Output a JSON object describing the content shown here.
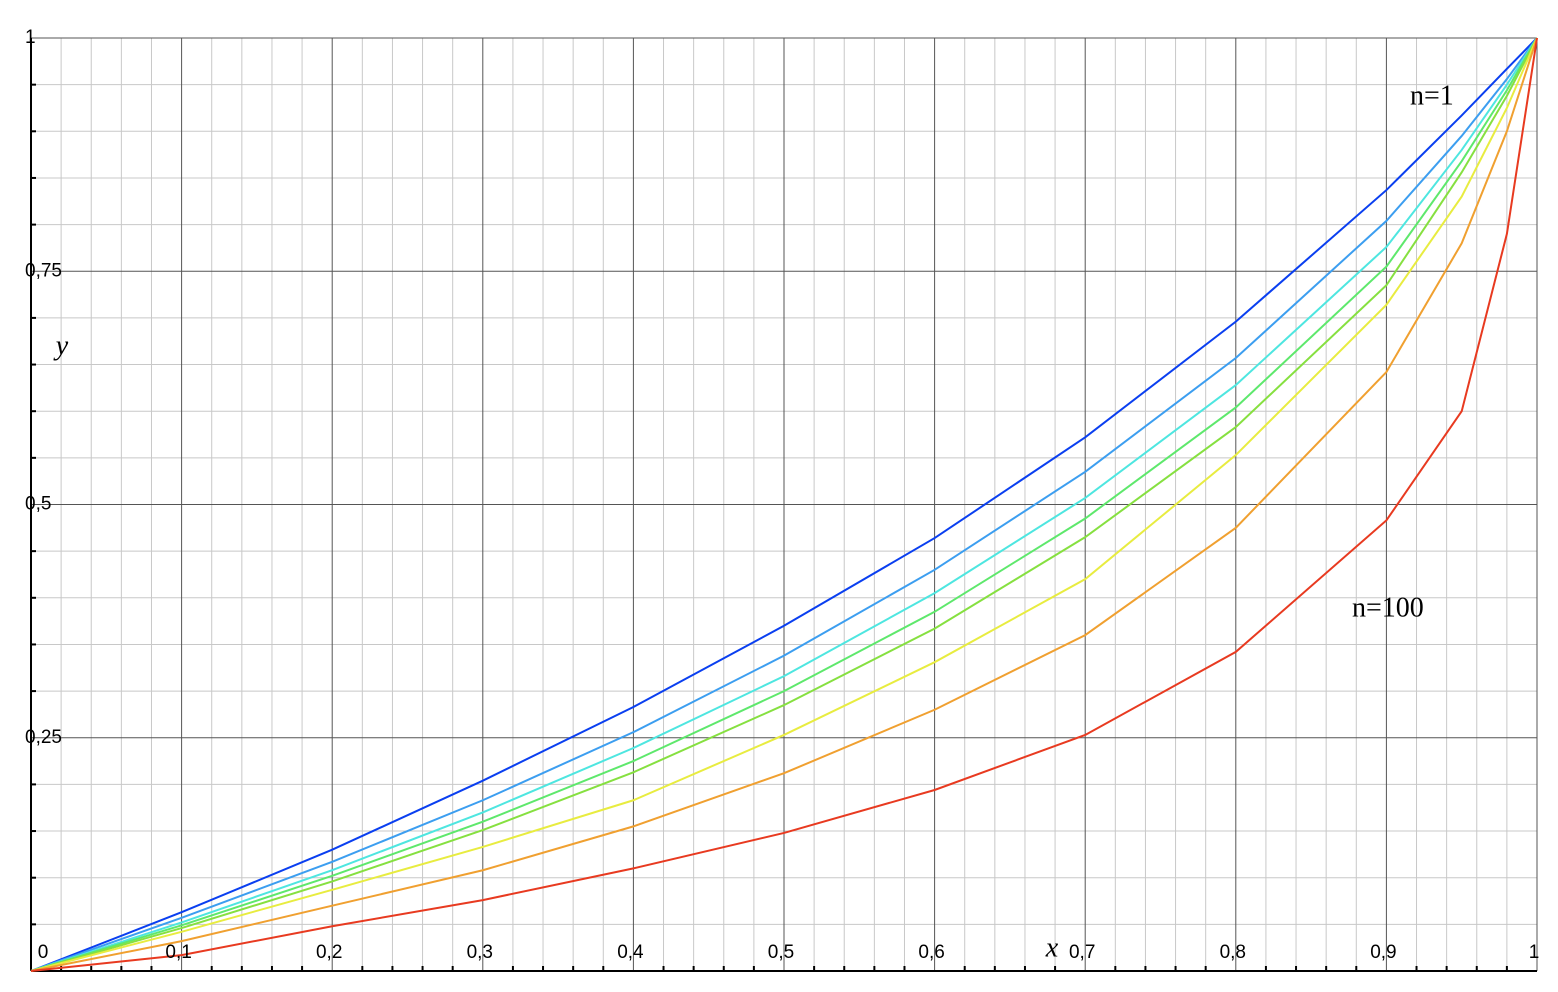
{
  "chart_data": {
    "type": "line",
    "x_label": "x",
    "y_label": "y",
    "annotations": [
      "n=1",
      "n=100"
    ],
    "x": [
      0,
      0.1,
      0.2,
      0.3,
      0.4,
      0.5,
      0.6,
      0.7,
      0.8,
      0.9,
      0.95,
      0.98,
      1
    ],
    "series": [
      {
        "color": "#0a3ff0",
        "values": [
          0,
          0.063,
          0.13,
          0.204,
          0.283,
          0.37,
          0.464,
          0.572,
          0.696,
          0.837,
          0.917,
          0.967,
          1
        ]
      },
      {
        "color": "#3c9ef0",
        "values": [
          0,
          0.057,
          0.117,
          0.183,
          0.256,
          0.338,
          0.43,
          0.535,
          0.657,
          0.804,
          0.895,
          0.956,
          1
        ]
      },
      {
        "color": "#4ee6e0",
        "values": [
          0,
          0.052,
          0.108,
          0.17,
          0.239,
          0.316,
          0.405,
          0.507,
          0.628,
          0.776,
          0.88,
          0.95,
          1
        ]
      },
      {
        "color": "#5ee86c",
        "values": [
          0,
          0.049,
          0.102,
          0.16,
          0.225,
          0.3,
          0.385,
          0.485,
          0.604,
          0.755,
          0.868,
          0.944,
          1
        ]
      },
      {
        "color": "#86e040",
        "values": [
          0,
          0.046,
          0.096,
          0.151,
          0.213,
          0.285,
          0.367,
          0.465,
          0.583,
          0.735,
          0.856,
          0.938,
          1
        ]
      },
      {
        "color": "#e8ec40",
        "values": [
          0,
          0.042,
          0.087,
          0.133,
          0.183,
          0.253,
          0.331,
          0.42,
          0.553,
          0.714,
          0.83,
          0.925,
          1
        ]
      },
      {
        "color": "#f0a030",
        "values": [
          0,
          0.032,
          0.07,
          0.108,
          0.155,
          0.212,
          0.28,
          0.36,
          0.475,
          0.642,
          0.78,
          0.9,
          1
        ]
      },
      {
        "color": "#e83a20",
        "values": [
          0,
          0.017,
          0.048,
          0.076,
          0.11,
          0.148,
          0.194,
          0.253,
          0.342,
          0.483,
          0.6,
          0.79,
          1
        ]
      }
    ],
    "xlim": [
      0,
      1
    ],
    "ylim": [
      0,
      1
    ],
    "xticks": [
      0,
      {
        "value": 0.1,
        "label": "0,1"
      },
      {
        "value": 0.2,
        "label": "0,2"
      },
      {
        "value": 0.3,
        "label": "0,3"
      },
      {
        "value": 0.4,
        "label": "0,4"
      },
      {
        "value": 0.5,
        "label": "0,5"
      },
      {
        "value": 0.6,
        "label": "0,6"
      },
      {
        "value": 0.7,
        "label": "0,7"
      },
      {
        "value": 0.8,
        "label": "0,8"
      },
      {
        "value": 0.9,
        "label": "0,9"
      },
      1
    ],
    "yticks": [
      {
        "value": 0.25,
        "label": "0,25"
      },
      {
        "value": 0.5,
        "label": "0,5"
      },
      {
        "value": 0.75,
        "label": "0,75"
      },
      1
    ],
    "grid": true
  }
}
